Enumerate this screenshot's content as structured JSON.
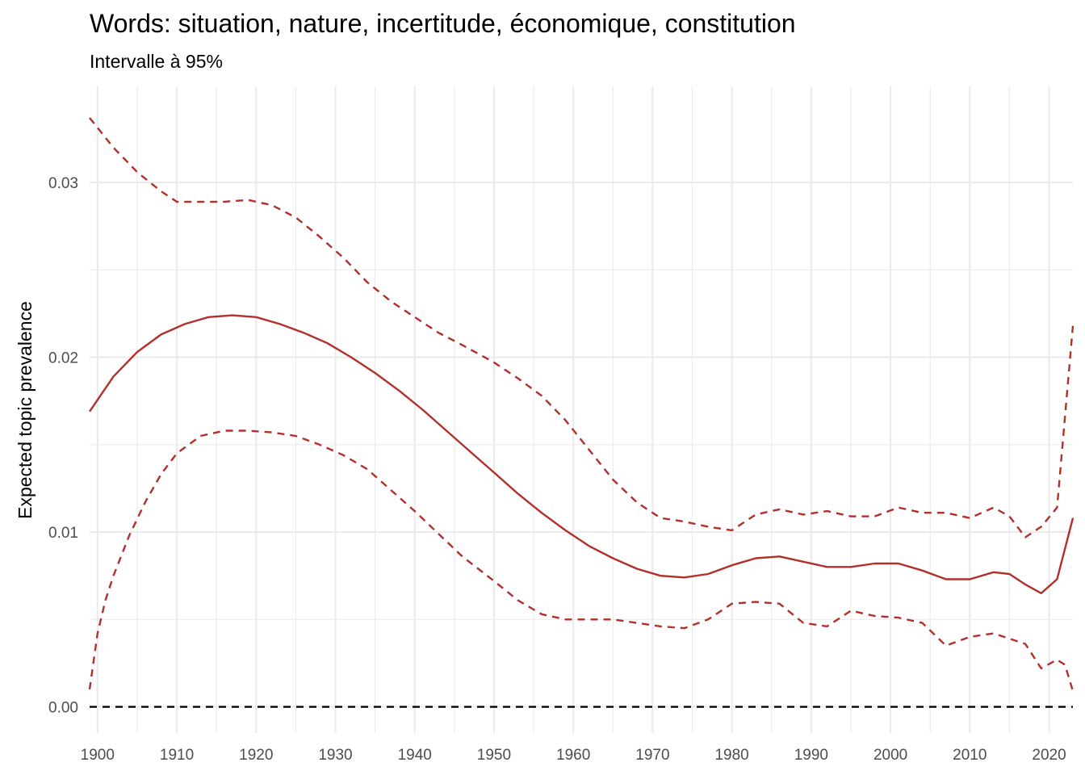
{
  "chart_data": {
    "type": "line",
    "title": "Words: situation, nature, incertitude, économique, constitution",
    "subtitle": "Intervalle à 95%",
    "xlabel": "",
    "ylabel": "Expected topic prevalence",
    "xlim": [
      1899,
      2023
    ],
    "ylim": [
      -0.0015,
      0.0355
    ],
    "x_ticks": [
      1900,
      1910,
      1920,
      1930,
      1940,
      1950,
      1960,
      1970,
      1980,
      1990,
      2000,
      2010,
      2020
    ],
    "y_ticks": [
      0.0,
      0.01,
      0.02,
      0.03
    ],
    "y_tick_labels": [
      "0.00",
      "0.01",
      "0.02",
      "0.03"
    ],
    "grid": true,
    "reference_line": {
      "y": 0,
      "style": "dashed",
      "color": "#000000"
    },
    "series": [
      {
        "style": "solid",
        "color": "#b2302b",
        "x": [
          1899,
          1902,
          1905,
          1908,
          1911,
          1914,
          1917,
          1920,
          1923,
          1926,
          1929,
          1932,
          1935,
          1938,
          1941,
          1944,
          1947,
          1950,
          1953,
          1956,
          1959,
          1962,
          1965,
          1968,
          1971,
          1974,
          1977,
          1980,
          1983,
          1986,
          1989,
          1992,
          1995,
          1998,
          2001,
          2004,
          2007,
          2010,
          2013,
          2015,
          2017,
          2019,
          2021,
          2023
        ],
        "y": [
          0.0169,
          0.0189,
          0.0203,
          0.0213,
          0.0219,
          0.0223,
          0.0224,
          0.0223,
          0.0219,
          0.0214,
          0.0208,
          0.02,
          0.0191,
          0.0181,
          0.017,
          0.0158,
          0.0146,
          0.0134,
          0.0122,
          0.0111,
          0.0101,
          0.0092,
          0.0085,
          0.0079,
          0.0075,
          0.0074,
          0.0076,
          0.0081,
          0.0085,
          0.0086,
          0.0083,
          0.008,
          0.008,
          0.0082,
          0.0082,
          0.0078,
          0.0073,
          0.0073,
          0.0077,
          0.0076,
          0.007,
          0.0065,
          0.0073,
          0.0108
        ]
      },
      {
        "style": "dashed",
        "color": "#b2302b",
        "x": [
          1899,
          1902,
          1905,
          1908,
          1910,
          1913,
          1916,
          1919,
          1922,
          1925,
          1928,
          1931,
          1934,
          1937,
          1940,
          1943,
          1946,
          1950,
          1953,
          1956,
          1959,
          1962,
          1965,
          1968,
          1971,
          1974,
          1977,
          1980,
          1983,
          1986,
          1989,
          1992,
          1995,
          1998,
          2001,
          2004,
          2007,
          2010,
          2013,
          2015,
          2017,
          2019,
          2021,
          2023
        ],
        "y": [
          0.0337,
          0.032,
          0.0306,
          0.0295,
          0.0289,
          0.0289,
          0.0289,
          0.029,
          0.0287,
          0.028,
          0.0269,
          0.0257,
          0.0243,
          0.0232,
          0.0223,
          0.0214,
          0.0207,
          0.0197,
          0.0188,
          0.0178,
          0.0164,
          0.0147,
          0.013,
          0.0117,
          0.0108,
          0.0106,
          0.0103,
          0.0101,
          0.011,
          0.0113,
          0.011,
          0.0112,
          0.0109,
          0.0109,
          0.0114,
          0.0111,
          0.0111,
          0.0108,
          0.0114,
          0.0109,
          0.0097,
          0.0103,
          0.0114,
          0.0218
        ]
      },
      {
        "style": "dashed",
        "color": "#b2302b",
        "x": [
          1899,
          1900,
          1901,
          1902,
          1904,
          1906,
          1908,
          1910,
          1913,
          1916,
          1919,
          1922,
          1925,
          1928,
          1931,
          1934,
          1937,
          1940,
          1943,
          1946,
          1950,
          1953,
          1956,
          1959,
          1962,
          1965,
          1968,
          1971,
          1974,
          1977,
          1980,
          1983,
          1986,
          1989,
          1992,
          1995,
          1998,
          2001,
          2004,
          2007,
          2010,
          2013,
          2015,
          2017,
          2019,
          2021,
          2022,
          2023
        ],
        "y": [
          0.001,
          0.0042,
          0.0061,
          0.0075,
          0.0098,
          0.0117,
          0.0133,
          0.0145,
          0.0155,
          0.0158,
          0.0158,
          0.0157,
          0.0155,
          0.015,
          0.0144,
          0.0136,
          0.0124,
          0.0112,
          0.0099,
          0.0086,
          0.0072,
          0.0061,
          0.0053,
          0.005,
          0.005,
          0.005,
          0.0048,
          0.0046,
          0.0045,
          0.005,
          0.0059,
          0.006,
          0.0059,
          0.0048,
          0.0046,
          0.0055,
          0.0052,
          0.0051,
          0.0048,
          0.0035,
          0.004,
          0.0042,
          0.0039,
          0.0036,
          0.0022,
          0.0027,
          0.0024,
          0.0009
        ]
      }
    ]
  }
}
